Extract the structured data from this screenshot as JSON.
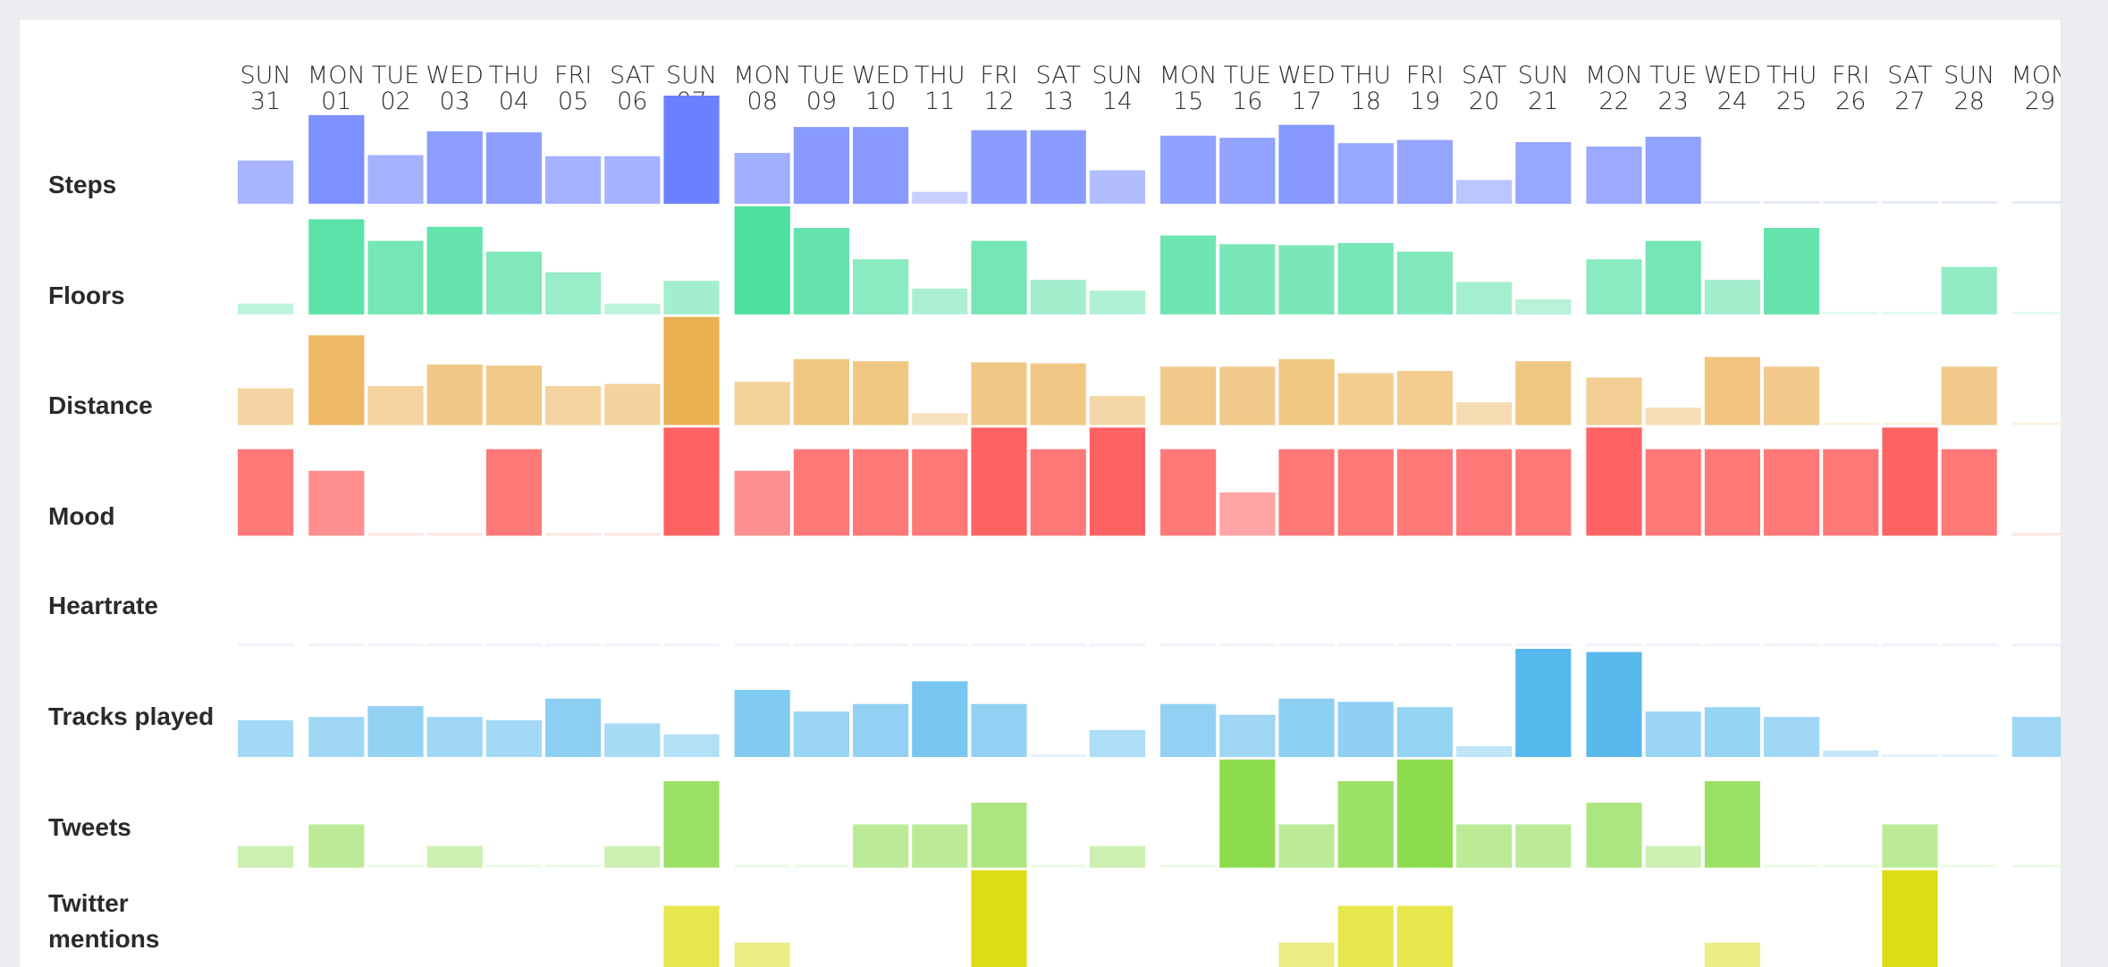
{
  "chart_data": {
    "type": "bar",
    "days": [
      {
        "weekday": "SUN",
        "date": "31"
      },
      {
        "weekday": "MON",
        "date": "01"
      },
      {
        "weekday": "TUE",
        "date": "02"
      },
      {
        "weekday": "WED",
        "date": "03"
      },
      {
        "weekday": "THU",
        "date": "04"
      },
      {
        "weekday": "FRI",
        "date": "05"
      },
      {
        "weekday": "SAT",
        "date": "06"
      },
      {
        "weekday": "SUN",
        "date": "07"
      },
      {
        "weekday": "MON",
        "date": "08"
      },
      {
        "weekday": "TUE",
        "date": "09"
      },
      {
        "weekday": "WED",
        "date": "10"
      },
      {
        "weekday": "THU",
        "date": "11"
      },
      {
        "weekday": "FRI",
        "date": "12"
      },
      {
        "weekday": "SAT",
        "date": "13"
      },
      {
        "weekday": "SUN",
        "date": "14"
      },
      {
        "weekday": "MON",
        "date": "15"
      },
      {
        "weekday": "TUE",
        "date": "16"
      },
      {
        "weekday": "WED",
        "date": "17"
      },
      {
        "weekday": "THU",
        "date": "18"
      },
      {
        "weekday": "FRI",
        "date": "19"
      },
      {
        "weekday": "SAT",
        "date": "20"
      },
      {
        "weekday": "SUN",
        "date": "21"
      },
      {
        "weekday": "MON",
        "date": "22"
      },
      {
        "weekday": "TUE",
        "date": "23"
      },
      {
        "weekday": "WED",
        "date": "24"
      },
      {
        "weekday": "THU",
        "date": "25"
      },
      {
        "weekday": "FRI",
        "date": "26"
      },
      {
        "weekday": "SAT",
        "date": "27"
      },
      {
        "weekday": "SUN",
        "date": "28"
      },
      {
        "weekday": "MON",
        "date": "29"
      }
    ],
    "series": [
      {
        "name": "Steps",
        "color": "#6a80ff",
        "values": [
          0.4,
          0.82,
          0.45,
          0.67,
          0.66,
          0.44,
          0.44,
          1.0,
          0.47,
          0.71,
          0.71,
          0.11,
          0.68,
          0.68,
          0.31,
          0.63,
          0.61,
          0.73,
          0.56,
          0.59,
          0.22,
          0.57,
          0.53,
          0.62,
          0,
          0,
          0,
          0,
          0,
          0
        ]
      },
      {
        "name": "Floors",
        "color": "#4ddfa0",
        "values": [
          0.1,
          0.88,
          0.68,
          0.81,
          0.58,
          0.39,
          0.1,
          0.31,
          1.0,
          0.8,
          0.51,
          0.24,
          0.68,
          0.32,
          0.22,
          0.73,
          0.65,
          0.64,
          0.66,
          0.58,
          0.3,
          0.14,
          0.51,
          0.68,
          0.32,
          0.8,
          0,
          0,
          0.44,
          0
        ]
      },
      {
        "name": "Distance",
        "color": "#ebb052",
        "values": [
          0.34,
          0.83,
          0.36,
          0.56,
          0.55,
          0.36,
          0.38,
          1.0,
          0.4,
          0.61,
          0.59,
          0.11,
          0.58,
          0.57,
          0.27,
          0.54,
          0.54,
          0.61,
          0.48,
          0.5,
          0.21,
          0.59,
          0.44,
          0.16,
          0.63,
          0.54,
          0,
          0,
          0.54,
          0
        ]
      },
      {
        "name": "Mood",
        "color": "#ff6262",
        "values": [
          0.8,
          0.6,
          0,
          0,
          0.8,
          0,
          0,
          1.0,
          0.6,
          0.8,
          0.8,
          0.8,
          1.0,
          0.8,
          1.0,
          0.8,
          0.4,
          0.8,
          0.8,
          0.8,
          0.8,
          0.8,
          1.0,
          0.8,
          0.8,
          0.8,
          0.8,
          1.0,
          0.8,
          0
        ]
      },
      {
        "name": "Heartrate",
        "color": "#b8a8ec",
        "values": [
          0,
          0,
          0,
          0,
          0,
          0,
          0,
          0,
          0,
          0,
          0,
          0,
          0,
          0,
          0,
          0,
          0,
          0,
          0,
          0,
          0,
          0,
          0,
          0,
          0,
          0,
          0,
          0,
          0,
          0
        ]
      },
      {
        "name": "Tracks played",
        "color": "#55b8ec",
        "values": [
          0.34,
          0.37,
          0.47,
          0.37,
          0.34,
          0.54,
          0.31,
          0.21,
          0.62,
          0.42,
          0.49,
          0.7,
          0.49,
          0,
          0.25,
          0.49,
          0.39,
          0.54,
          0.51,
          0.46,
          0.1,
          1.0,
          0.97,
          0.42,
          0.46,
          0.37,
          0.06,
          0,
          0,
          0.37
        ]
      },
      {
        "name": "Tweets",
        "color": "#8cdc4e",
        "values": [
          0.2,
          0.4,
          0,
          0.2,
          0,
          0,
          0.2,
          0.8,
          0,
          0,
          0.4,
          0.4,
          0.6,
          0,
          0.2,
          0,
          1.0,
          0.4,
          0.8,
          1.0,
          0.4,
          0.4,
          0.6,
          0.2,
          0.8,
          0,
          0,
          0.4,
          0,
          0
        ]
      },
      {
        "name": "Twitter mentions",
        "color": "#dede18",
        "values": [
          0,
          0,
          0,
          0,
          0,
          0,
          0,
          0.67,
          0.33,
          0,
          0,
          0,
          1.0,
          0,
          0,
          0,
          0,
          0.33,
          0.67,
          0.67,
          0,
          0,
          0,
          0,
          0.33,
          0,
          0,
          1.0,
          0,
          0
        ]
      }
    ],
    "labels": {
      "steps": "Steps",
      "floors": "Floors",
      "distance": "Distance",
      "mood": "Mood",
      "heartrate": "Heartrate",
      "tracks": "Tracks played",
      "tweets": "Tweets",
      "mentions_line1": "Twitter",
      "mentions_line2": "mentions"
    }
  }
}
